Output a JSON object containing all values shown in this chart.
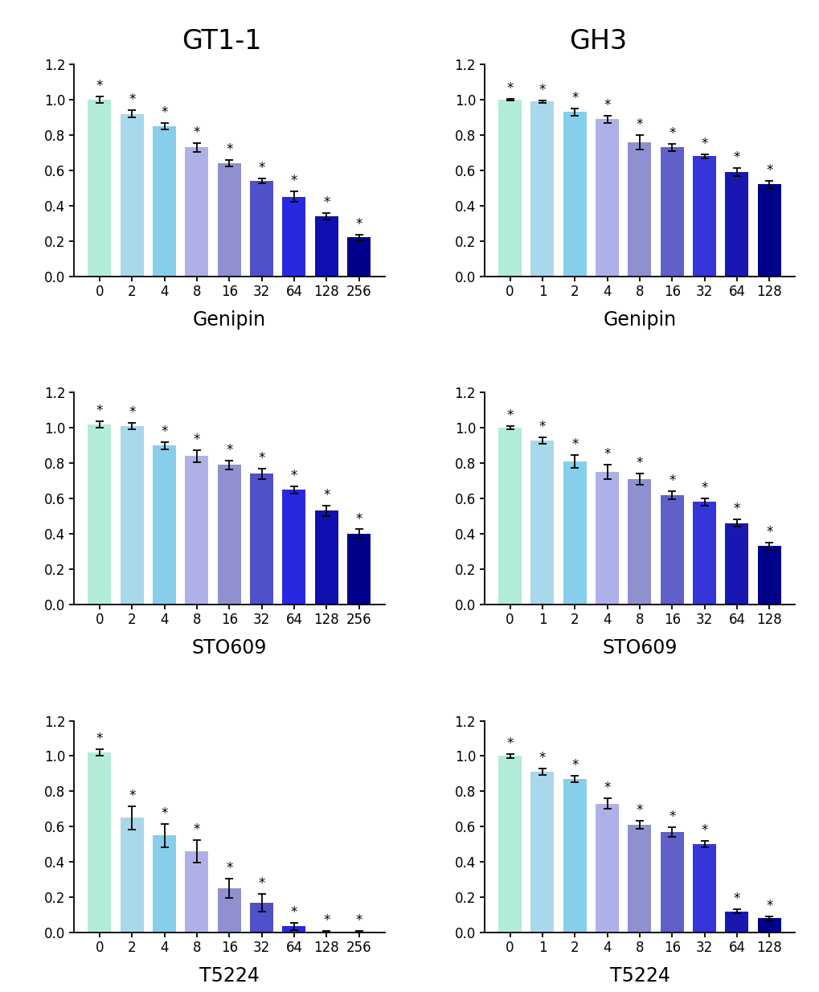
{
  "col_titles": [
    "GT1-1",
    "GH3"
  ],
  "row_subtitles": [
    "Genipin",
    "STO609",
    "T5224"
  ],
  "panels": [
    {
      "row": 0,
      "col": 0,
      "categories": [
        "0",
        "2",
        "4",
        "8",
        "16",
        "32",
        "64",
        "128",
        "256"
      ],
      "values": [
        1.0,
        0.92,
        0.85,
        0.73,
        0.64,
        0.54,
        0.45,
        0.34,
        0.22
      ],
      "errors": [
        0.02,
        0.02,
        0.02,
        0.025,
        0.02,
        0.015,
        0.03,
        0.02,
        0.015
      ],
      "colors": [
        "#b2ecd8",
        "#a8d8ea",
        "#87ceeb",
        "#b0b0e8",
        "#9090d0",
        "#5050c8",
        "#2828e0",
        "#1010b0",
        "#00008b"
      ]
    },
    {
      "row": 0,
      "col": 1,
      "categories": [
        "0",
        "1",
        "2",
        "4",
        "8",
        "16",
        "32",
        "64",
        "128"
      ],
      "values": [
        1.0,
        0.99,
        0.93,
        0.89,
        0.76,
        0.73,
        0.68,
        0.59,
        0.52
      ],
      "errors": [
        0.005,
        0.008,
        0.02,
        0.02,
        0.04,
        0.02,
        0.012,
        0.022,
        0.02
      ],
      "colors": [
        "#b2ecd8",
        "#a8d8ea",
        "#87ceeb",
        "#b0b0e8",
        "#9090d0",
        "#6060c8",
        "#3535d8",
        "#1818b0",
        "#00008b"
      ]
    },
    {
      "row": 1,
      "col": 0,
      "categories": [
        "0",
        "2",
        "4",
        "8",
        "16",
        "32",
        "64",
        "128",
        "256"
      ],
      "values": [
        1.02,
        1.01,
        0.9,
        0.84,
        0.79,
        0.74,
        0.65,
        0.53,
        0.4
      ],
      "errors": [
        0.02,
        0.02,
        0.02,
        0.035,
        0.025,
        0.03,
        0.02,
        0.03,
        0.025
      ],
      "colors": [
        "#b2ecd8",
        "#a8d8ea",
        "#87ceeb",
        "#b0b0e8",
        "#9090d0",
        "#5050c8",
        "#2828e0",
        "#1010b0",
        "#00008b"
      ]
    },
    {
      "row": 1,
      "col": 1,
      "categories": [
        "0",
        "1",
        "2",
        "4",
        "8",
        "16",
        "32",
        "64",
        "128"
      ],
      "values": [
        1.0,
        0.93,
        0.81,
        0.75,
        0.71,
        0.62,
        0.58,
        0.46,
        0.33
      ],
      "errors": [
        0.01,
        0.018,
        0.035,
        0.04,
        0.03,
        0.022,
        0.022,
        0.02,
        0.022
      ],
      "colors": [
        "#b2ecd8",
        "#a8d8ea",
        "#87ceeb",
        "#b0b0e8",
        "#9090d0",
        "#6060c8",
        "#3535d8",
        "#1818b0",
        "#00008b"
      ]
    },
    {
      "row": 2,
      "col": 0,
      "categories": [
        "0",
        "2",
        "4",
        "8",
        "16",
        "32",
        "64",
        "128",
        "256"
      ],
      "values": [
        1.02,
        0.65,
        0.55,
        0.46,
        0.25,
        0.17,
        0.035,
        0.005,
        0.005
      ],
      "errors": [
        0.02,
        0.065,
        0.065,
        0.065,
        0.055,
        0.05,
        0.02,
        0.005,
        0.005
      ],
      "colors": [
        "#b2ecd8",
        "#a8d8ea",
        "#87ceeb",
        "#b0b0e8",
        "#9090d0",
        "#5050c8",
        "#2828e0",
        "#1010b0",
        "#00008b"
      ]
    },
    {
      "row": 2,
      "col": 1,
      "categories": [
        "0",
        "1",
        "2",
        "4",
        "8",
        "16",
        "32",
        "64",
        "128"
      ],
      "values": [
        1.0,
        0.91,
        0.87,
        0.73,
        0.61,
        0.57,
        0.5,
        0.12,
        0.08
      ],
      "errors": [
        0.01,
        0.018,
        0.018,
        0.03,
        0.022,
        0.028,
        0.018,
        0.012,
        0.012
      ],
      "colors": [
        "#b2ecd8",
        "#a8d8ea",
        "#87ceeb",
        "#b0b0e8",
        "#9090d0",
        "#6060c8",
        "#3535d8",
        "#1818b0",
        "#00008b"
      ]
    }
  ],
  "ylim": [
    0,
    1.2
  ],
  "yticks": [
    0.0,
    0.2,
    0.4,
    0.6,
    0.8,
    1.0,
    1.2
  ],
  "background_color": "#ffffff",
  "col_title_fontsize": 24,
  "row_subtitle_fontsize": 17,
  "tick_fontsize": 12,
  "star_fontsize": 12,
  "bar_width": 0.72
}
